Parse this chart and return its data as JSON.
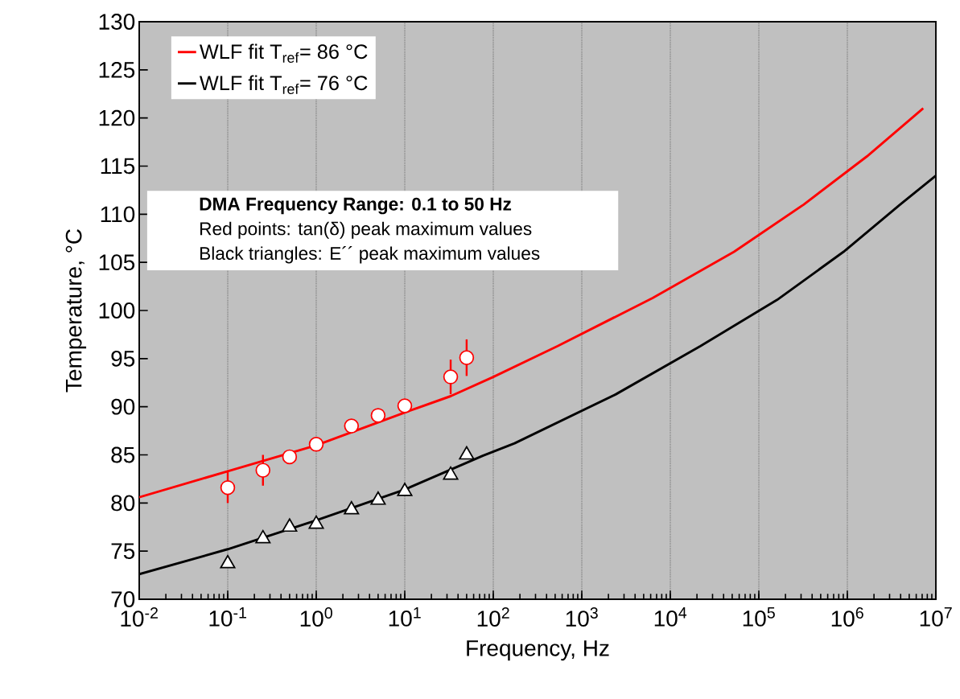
{
  "chart_data": {
    "type": "line",
    "xlabel": "Frequency, Hz",
    "ylabel": "Temperature, °C",
    "log": "x",
    "grid": "x",
    "legend": "top left",
    "xlim": [
      0.01,
      10000000
    ],
    "ylim": [
      70,
      130
    ],
    "xticks": [
      {
        "value": 0.01,
        "label": "10$^{-2}$"
      },
      {
        "value": 0.1,
        "label": "10$^{-1}$"
      },
      {
        "value": 1,
        "label": "10$^{0}$"
      },
      {
        "value": 10,
        "label": "10$^{1}$"
      },
      {
        "value": 100,
        "label": "10$^{2}$"
      },
      {
        "value": 1000,
        "label": "10$^{3}$"
      },
      {
        "value": 10000,
        "label": "10$^{4}$"
      },
      {
        "value": 100000,
        "label": "10$^{5}$"
      },
      {
        "value": 1000000,
        "label": "10$^{6}$"
      },
      {
        "value": 10000000,
        "label": "10$^{7}$"
      }
    ],
    "yticks": [
      70,
      75,
      80,
      85,
      90,
      95,
      100,
      105,
      110,
      115,
      120,
      125,
      130
    ],
    "annotations": [
      "DMA Frequency Range: 0.1 to 50 Hz",
      "Red points: tan(δ) peak maximum values",
      "Black triangles: E´´ peak maximum values"
    ],
    "series": [
      {
        "name": "WLF fit T$_{ref}$= 86 °C",
        "marker": "none",
        "color": "#ff0000",
        "x": [
          0.01,
          0.1,
          1,
          10,
          33,
          100,
          533,
          6310,
          52500,
          321000,
          1660000,
          7200000
        ],
        "values": [
          80.6,
          83.3,
          86.0,
          89.4,
          91.1,
          93.1,
          96.3,
          101.3,
          106.1,
          111.0,
          116.0,
          121.0
        ]
      },
      {
        "name": "WLF fit T$_{ref}$= 76 °C",
        "marker": "none",
        "color": "#000000",
        "x": [
          0.01,
          0.1,
          1,
          10,
          76,
          174,
          2430,
          21900,
          160700,
          906000,
          3940000,
          10000000
        ],
        "values": [
          72.6,
          75.2,
          78.2,
          81.4,
          84.9,
          86.2,
          91.3,
          96.3,
          101.1,
          106.1,
          111.0,
          114.0
        ]
      },
      {
        "type": "scatter",
        "marker": "circle",
        "color": "#ff0000",
        "x": [
          0.1,
          0.25,
          0.5,
          1,
          2.5,
          5,
          10,
          33,
          50
        ],
        "values": [
          81.6,
          83.4,
          84.8,
          86.1,
          88.0,
          89.1,
          90.1,
          93.1,
          95.1
        ],
        "errors": [
          1.6,
          1.6,
          null,
          null,
          null,
          null,
          null,
          1.8,
          1.9
        ]
      },
      {
        "type": "scatter",
        "marker": "triangle",
        "color": "#000000",
        "x": [
          0.1,
          0.25,
          0.5,
          1,
          2.5,
          5,
          10,
          33,
          50
        ],
        "values": [
          73.7,
          76.3,
          77.5,
          77.8,
          79.3,
          80.3,
          81.2,
          82.9,
          85.0
        ]
      }
    ]
  }
}
